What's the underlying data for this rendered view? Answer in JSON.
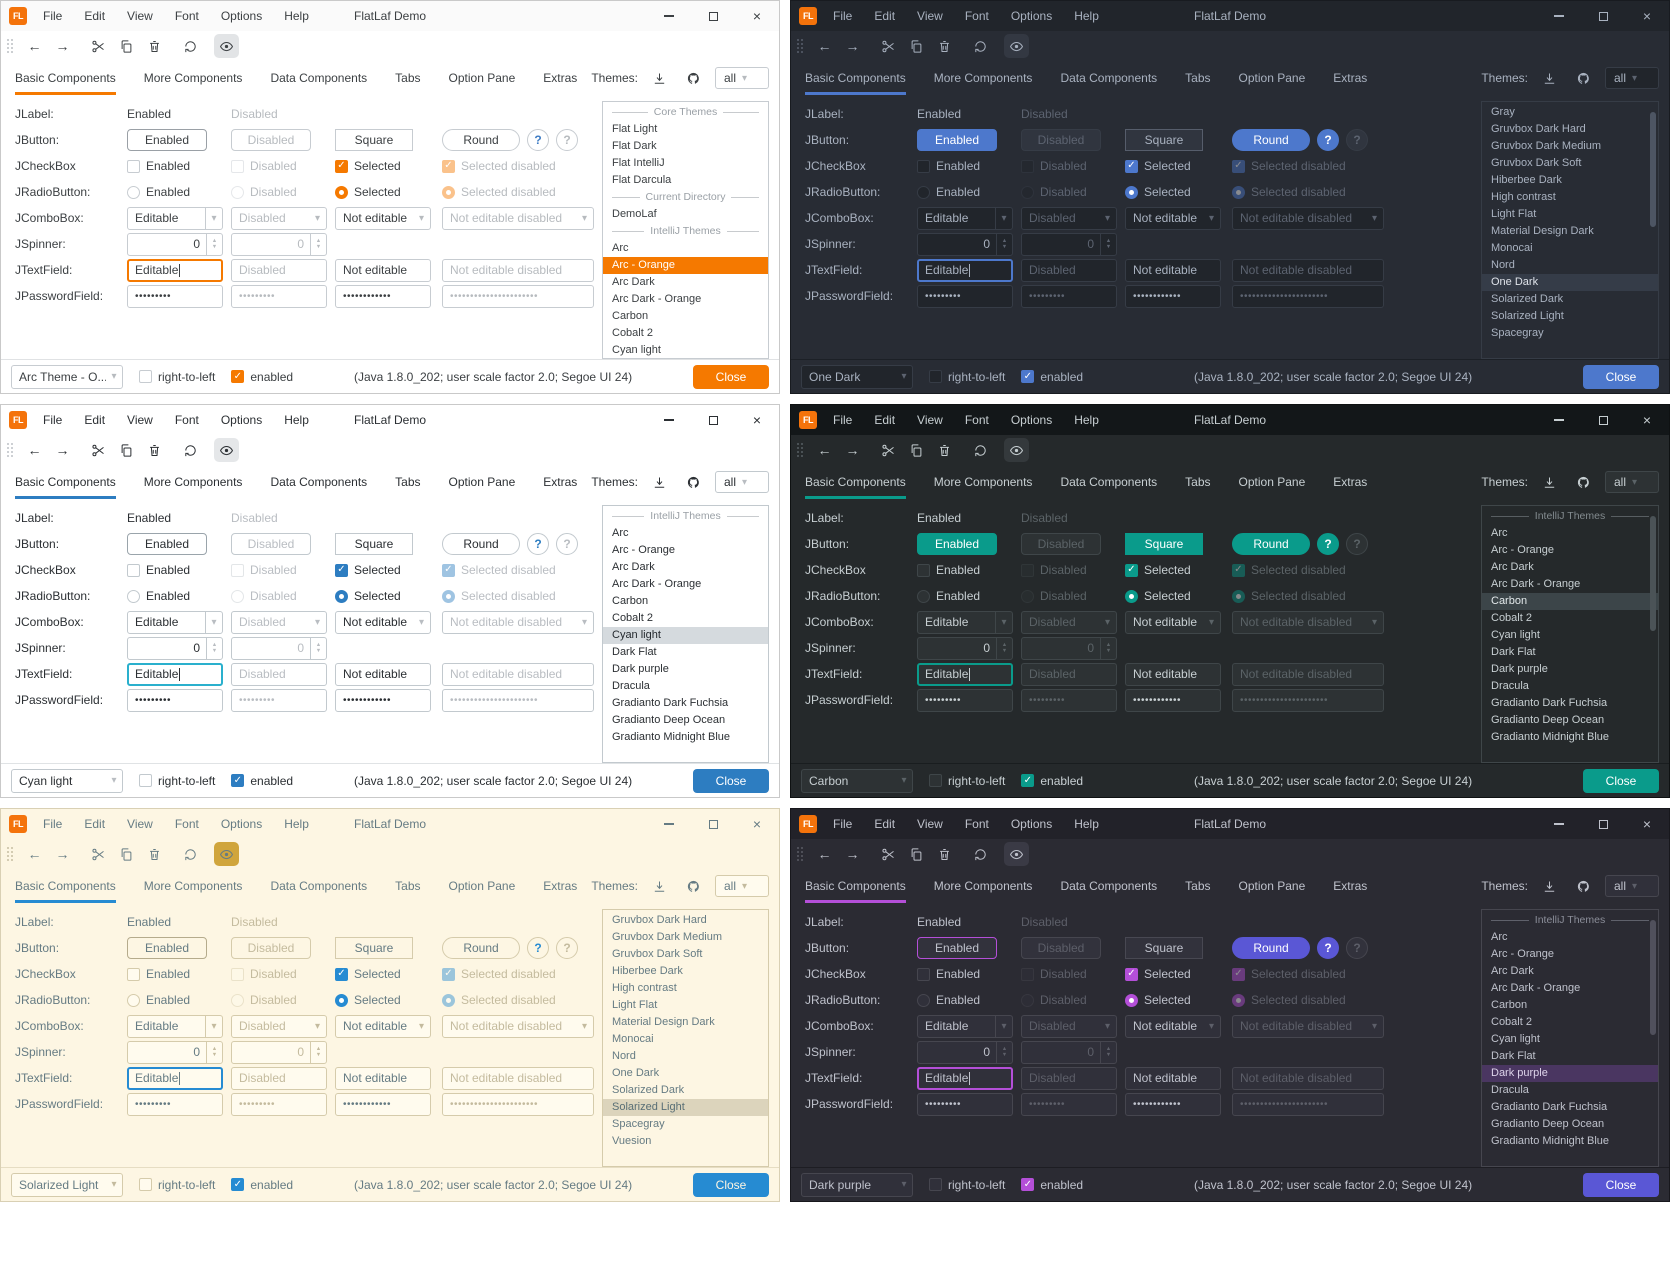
{
  "shared": {
    "titlebar": {
      "logo_text": "FL",
      "title": "FlatLaf Demo",
      "menus": [
        "File",
        "Edit",
        "View",
        "Font",
        "Options",
        "Help"
      ],
      "close_glyph": "×"
    },
    "icons": {
      "back": "←",
      "forward": "→",
      "combo_arrow": "▾",
      "spin_up": "▲",
      "spin_down": "▼",
      "check": "✓"
    },
    "tabs": [
      "Basic Components",
      "More Components",
      "Data Components",
      "Tabs",
      "Option Pane",
      "Extras"
    ],
    "themes_header": {
      "label": "Themes:",
      "filter_value": "all"
    },
    "form": {
      "labels": {
        "jlabel": "JLabel:",
        "jbutton": "JButton:",
        "jcheckbox": "JCheckBox",
        "jradiobutton": "JRadioButton:",
        "jcombobox": "JComboBox:",
        "jspinner": "JSpinner:",
        "jtextfield": "JTextField:",
        "jpasswordfield": "JPasswordField:"
      },
      "enabled": "Enabled",
      "disabled": "Disabled",
      "square": "Square",
      "round": "Round",
      "help": "?",
      "selected": "Selected",
      "selected_disabled": "Selected disabled",
      "editable": "Editable",
      "not_editable": "Not editable",
      "not_editable_disabled": "Not editable disabled",
      "spinner_value": "0",
      "password_short": "•••••••••",
      "password_medium": "••••••••••••",
      "password_long": "••••••••••••••••••••••"
    },
    "statusbar": {
      "rtl_label": "right-to-left",
      "enabled_label": "enabled",
      "info": "(Java 1.8.0_202;  user scale factor 2.0; Segoe UI 24)",
      "close_label": "Close"
    }
  },
  "panels": [
    {
      "theme_name": "Arc - Orange",
      "status_theme": "Arc Theme - O...",
      "scrollbar": false,
      "colors": {
        "bg": "#ffffff",
        "titlebarBg": "#fafafa",
        "border": "#c9c9c9",
        "fg": "#3c4043",
        "dimFg": "#b7bbbf",
        "accent": "#f57900",
        "fieldBg": "#ffffff",
        "fieldBorder": "#c7ccd1",
        "btnBg": "#ffffff",
        "btnBorder": "#c7ccd1",
        "defaultBtnBg": "#ffffff",
        "defaultBtnFg": "#3c4043",
        "defaultBtnBorder": "#9aa0a6",
        "squareBtnBg": "#ffffff",
        "squareBtnFg": "#3c4043",
        "squareBtnBorder": "#c7ccd1",
        "roundBtnBg": "#ffffff",
        "roundBtnFg": "#3c4043",
        "roundBtnBorder": "#c7ccd1",
        "helpBg": "#ffffff",
        "helpFg": "#3f7cc4",
        "helpBorder": "#c7ccd1",
        "listBg": "#ffffff",
        "listSelBg": "#f57900",
        "listSelFg": "#ffffff",
        "sepFg": "#9aa0a6",
        "closeBg": "#f57900",
        "closeFg": "#ffffff",
        "toolbarActiveBg": "#e2e4e6",
        "focus": "#f57900",
        "scrollThumb": "#c9ced2",
        "statusBorder": "#e0e2e4",
        "checkBg": "#f57900",
        "checkFg": "#ffffff"
      },
      "themes": [
        {
          "label": "Core Themes",
          "sep": true
        },
        {
          "label": "Flat Light"
        },
        {
          "label": "Flat Dark"
        },
        {
          "label": "Flat IntelliJ"
        },
        {
          "label": "Flat Darcula"
        },
        {
          "label": "Current Directory",
          "sep": true
        },
        {
          "label": "DemoLaf"
        },
        {
          "label": "IntelliJ Themes",
          "sep": true
        },
        {
          "label": "Arc"
        },
        {
          "label": "Arc - Orange",
          "selected": true
        },
        {
          "label": "Arc Dark"
        },
        {
          "label": "Arc Dark - Orange"
        },
        {
          "label": "Carbon"
        },
        {
          "label": "Cobalt 2"
        },
        {
          "label": "Cyan light"
        }
      ]
    },
    {
      "theme_name": "One Dark",
      "status_theme": "One Dark",
      "scrollbar": true,
      "colors": {
        "bg": "#282c34",
        "titlebarBg": "#21252b",
        "border": "#181b20",
        "fg": "#a9b2c0",
        "dimFg": "#5c6370",
        "accent": "#4d78cc",
        "fieldBg": "#21252b",
        "fieldBorder": "#363c46",
        "btnBg": "#30353f",
        "btnBorder": "#404652",
        "defaultBtnBg": "#4d78cc",
        "defaultBtnFg": "#ffffff",
        "defaultBtnBorder": "#4d78cc",
        "squareBtnBg": "#30353f",
        "squareBtnFg": "#a9b2c0",
        "squareBtnBorder": "#565d6b",
        "roundBtnBg": "#4d78cc",
        "roundBtnFg": "#ffffff",
        "roundBtnBorder": "#4d78cc",
        "helpBg": "#4d78cc",
        "helpFg": "#ffffff",
        "helpBorder": "#4d78cc",
        "listBg": "#282c34",
        "listSelBg": "#353c48",
        "listSelFg": "#dfe3ea",
        "sepFg": "#7a828f",
        "closeBg": "#4d78cc",
        "closeFg": "#ffffff",
        "toolbarActiveBg": "#333842",
        "focus": "#4d78cc",
        "scrollThumb": "#4d5563",
        "statusBorder": "#1c2026",
        "checkBg": "#4d78cc",
        "checkFg": "#ffffff"
      },
      "themes": [
        {
          "label": "Gray"
        },
        {
          "label": "Gruvbox Dark Hard"
        },
        {
          "label": "Gruvbox Dark Medium"
        },
        {
          "label": "Gruvbox Dark Soft"
        },
        {
          "label": "Hiberbee Dark"
        },
        {
          "label": "High contrast"
        },
        {
          "label": "Light Flat"
        },
        {
          "label": "Material Design Dark"
        },
        {
          "label": "Monocai"
        },
        {
          "label": "Nord"
        },
        {
          "label": "One Dark",
          "selected": true
        },
        {
          "label": "Solarized Dark"
        },
        {
          "label": "Solarized Light"
        },
        {
          "label": "Spacegray"
        }
      ]
    },
    {
      "theme_name": "Cyan light",
      "status_theme": "Cyan light",
      "scrollbar": false,
      "colors": {
        "bg": "#ffffff",
        "titlebarBg": "#ffffff",
        "border": "#c9c9c9",
        "fg": "#2b2f33",
        "dimFg": "#b9bdc2",
        "accent": "#2d7dc1",
        "fieldBg": "#ffffff",
        "fieldBorder": "#c2c9ce",
        "btnBg": "#ffffff",
        "btnBorder": "#c2c9ce",
        "defaultBtnBg": "#ffffff",
        "defaultBtnFg": "#2b2f33",
        "defaultBtnBorder": "#9aa4ab",
        "squareBtnBg": "#ffffff",
        "squareBtnFg": "#2b2f33",
        "squareBtnBorder": "#c2c9ce",
        "roundBtnBg": "#ffffff",
        "roundBtnFg": "#2b2f33",
        "roundBtnBorder": "#c2c9ce",
        "helpBg": "#ffffff",
        "helpFg": "#2d7dc1",
        "helpBorder": "#c2c9ce",
        "listBg": "#ffffff",
        "listSelBg": "#d5dade",
        "listSelFg": "#24292e",
        "sepFg": "#9aa0a6",
        "closeBg": "#2d7dc1",
        "closeFg": "#ffffff",
        "toolbarActiveBg": "#e5e7e9",
        "focus": "#2ab0cd",
        "scrollThumb": "#ccd1d5",
        "statusBorder": "#e0e3e5",
        "checkBg": "#2d7dc1",
        "checkFg": "#ffffff"
      },
      "themes": [
        {
          "label": "IntelliJ Themes",
          "sep": true
        },
        {
          "label": "Arc"
        },
        {
          "label": "Arc - Orange"
        },
        {
          "label": "Arc Dark"
        },
        {
          "label": "Arc Dark - Orange"
        },
        {
          "label": "Carbon"
        },
        {
          "label": "Cobalt 2"
        },
        {
          "label": "Cyan light",
          "selected": true
        },
        {
          "label": "Dark Flat"
        },
        {
          "label": "Dark purple"
        },
        {
          "label": "Dracula"
        },
        {
          "label": "Gradianto Dark Fuchsia"
        },
        {
          "label": "Gradianto Deep Ocean"
        },
        {
          "label": "Gradianto Midnight Blue"
        }
      ]
    },
    {
      "theme_name": "Carbon",
      "status_theme": "Carbon",
      "scrollbar": true,
      "colors": {
        "bg": "#25292b",
        "titlebarBg": "#131719",
        "border": "#0e1112",
        "fg": "#c7cfd2",
        "dimFg": "#5b6367",
        "accent": "#0a9b8b",
        "fieldBg": "#2d3234",
        "fieldBorder": "#3f4649",
        "btnBg": "#2d3234",
        "btnBorder": "#3f4649",
        "defaultBtnBg": "#0a9b8b",
        "defaultBtnFg": "#ffffff",
        "defaultBtnBorder": "#0a9b8b",
        "squareBtnBg": "#0a9b8b",
        "squareBtnFg": "#ffffff",
        "squareBtnBorder": "#0a9b8b",
        "roundBtnBg": "#0a9b8b",
        "roundBtnFg": "#ffffff",
        "roundBtnBorder": "#0a9b8b",
        "helpBg": "#0a9b8b",
        "helpFg": "#ffffff",
        "helpBorder": "#0a9b8b",
        "listBg": "#25292b",
        "listSelBg": "#3c4549",
        "listSelFg": "#e2e8ea",
        "sepFg": "#838b8f",
        "closeBg": "#0a9b8b",
        "closeFg": "#ffffff",
        "toolbarActiveBg": "#34393c",
        "focus": "#0a9b8b",
        "scrollThumb": "#4b5357",
        "statusBorder": "#191d1f",
        "checkBg": "#0a9b8b",
        "checkFg": "#ffffff"
      },
      "themes": [
        {
          "label": "IntelliJ Themes",
          "sep": true
        },
        {
          "label": "Arc"
        },
        {
          "label": "Arc - Orange"
        },
        {
          "label": "Arc Dark"
        },
        {
          "label": "Arc Dark - Orange"
        },
        {
          "label": "Carbon",
          "selected": true
        },
        {
          "label": "Cobalt 2"
        },
        {
          "label": "Cyan light"
        },
        {
          "label": "Dark Flat"
        },
        {
          "label": "Dark purple"
        },
        {
          "label": "Dracula"
        },
        {
          "label": "Gradianto Dark Fuchsia"
        },
        {
          "label": "Gradianto Deep Ocean"
        },
        {
          "label": "Gradianto Midnight Blue"
        }
      ]
    },
    {
      "theme_name": "Solarized Light",
      "status_theme": "Solarized Light",
      "scrollbar": false,
      "colors": {
        "bg": "#fdf6e3",
        "titlebarBg": "#fdf6e3",
        "border": "#d9d0b4",
        "fg": "#657b83",
        "dimFg": "#c4bb9e",
        "accent": "#268bd2",
        "fieldBg": "#fffbee",
        "fieldBorder": "#d5cbab",
        "btnBg": "#fdf6e3",
        "btnBorder": "#d5cbab",
        "defaultBtnBg": "#fdf6e3",
        "defaultBtnFg": "#657b83",
        "defaultBtnBorder": "#b5ab8c",
        "squareBtnBg": "#fdf6e3",
        "squareBtnFg": "#657b83",
        "squareBtnBorder": "#d5cbab",
        "roundBtnBg": "#fdf6e3",
        "roundBtnFg": "#657b83",
        "roundBtnBorder": "#d5cbab",
        "helpBg": "#fdf6e3",
        "helpFg": "#268bd2",
        "helpBorder": "#d5cbab",
        "listBg": "#fdf6e3",
        "listSelBg": "#dcd4bc",
        "listSelFg": "#586e75",
        "sepFg": "#93a1a1",
        "closeBg": "#268bd2",
        "closeFg": "#fdf6e3",
        "toolbarActiveBg": "#d0a53c",
        "focus": "#268bd2",
        "scrollThumb": "#d0c8ac",
        "statusBorder": "#e6ddc3",
        "checkBg": "#268bd2",
        "checkFg": "#ffffff"
      },
      "themes": [
        {
          "label": "Gruvbox Dark Hard"
        },
        {
          "label": "Gruvbox Dark Medium"
        },
        {
          "label": "Gruvbox Dark Soft"
        },
        {
          "label": "Hiberbee Dark"
        },
        {
          "label": "High contrast"
        },
        {
          "label": "Light Flat"
        },
        {
          "label": "Material Design Dark"
        },
        {
          "label": "Monocai"
        },
        {
          "label": "Nord"
        },
        {
          "label": "One Dark"
        },
        {
          "label": "Solarized Dark"
        },
        {
          "label": "Solarized Light",
          "selected": true
        },
        {
          "label": "Spacegray"
        },
        {
          "label": "Vuesion"
        }
      ]
    },
    {
      "theme_name": "Dark purple",
      "status_theme": "Dark purple",
      "scrollbar": true,
      "colors": {
        "bg": "#2b2b33",
        "titlebarBg": "#222229",
        "border": "#17171c",
        "fg": "#bfc2cc",
        "dimFg": "#5d5f69",
        "accent": "#b44fd8",
        "fieldBg": "#30303a",
        "fieldBorder": "#46464f",
        "btnBg": "#32323c",
        "btnBorder": "#484852",
        "defaultBtnBg": "#32323c",
        "defaultBtnFg": "#bfc2cc",
        "defaultBtnBorder": "#b44fd8",
        "squareBtnBg": "#32323c",
        "squareBtnFg": "#bfc2cc",
        "squareBtnBorder": "#484852",
        "roundBtnBg": "#5a57d5",
        "roundBtnFg": "#ffffff",
        "roundBtnBorder": "#5a57d5",
        "helpBg": "#5a57d5",
        "helpFg": "#ffffff",
        "helpBorder": "#5a57d5",
        "listBg": "#2b2b33",
        "listSelBg": "#4a3661",
        "listSelFg": "#ddd3ea",
        "sepFg": "#8b8e99",
        "closeBg": "#5a57d5",
        "closeFg": "#ffffff",
        "toolbarActiveBg": "#3a3a45",
        "focus": "#b44fd8",
        "scrollThumb": "#50505c",
        "statusBorder": "#1d1d23",
        "checkBg": "#b44fd8",
        "checkFg": "#ffffff"
      },
      "themes": [
        {
          "label": "IntelliJ Themes",
          "sep": true
        },
        {
          "label": "Arc"
        },
        {
          "label": "Arc - Orange"
        },
        {
          "label": "Arc Dark"
        },
        {
          "label": "Arc Dark - Orange"
        },
        {
          "label": "Carbon"
        },
        {
          "label": "Cobalt 2"
        },
        {
          "label": "Cyan light"
        },
        {
          "label": "Dark Flat"
        },
        {
          "label": "Dark purple",
          "selected": true
        },
        {
          "label": "Dracula"
        },
        {
          "label": "Gradianto Dark Fuchsia"
        },
        {
          "label": "Gradianto Deep Ocean"
        },
        {
          "label": "Gradianto Midnight Blue"
        }
      ]
    }
  ]
}
